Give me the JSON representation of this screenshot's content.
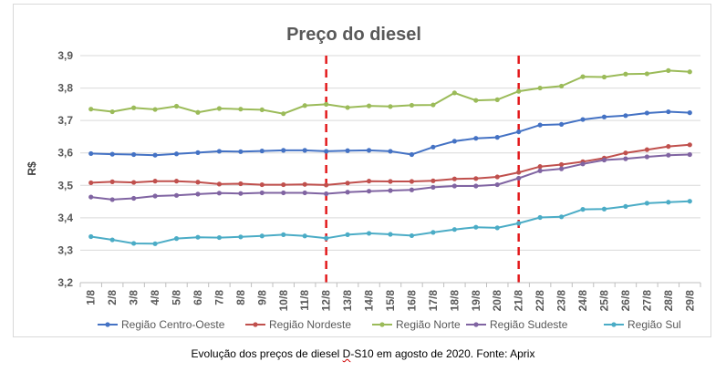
{
  "chart_data": {
    "type": "line",
    "title": "Preço do diesel",
    "ylabel": "R$",
    "xlabel": "",
    "ylim": [
      3.2,
      3.9
    ],
    "yticks": [
      "3,2",
      "3,3",
      "3,4",
      "3,5",
      "3,6",
      "3,7",
      "3,8",
      "3,9"
    ],
    "grid": true,
    "legend": "bottom",
    "categories": [
      "1/8",
      "2/8",
      "3/8",
      "4/8",
      "5/8",
      "6/8",
      "7/8",
      "8/8",
      "9/8",
      "10/8",
      "11/8",
      "12/8",
      "13/8",
      "14/8",
      "15/8",
      "16/8",
      "17/8",
      "18/8",
      "19/8",
      "20/8",
      "21/8",
      "22/8",
      "23/8",
      "24/8",
      "25/8",
      "26/8",
      "27/8",
      "28/8",
      "29/8"
    ],
    "markers": [
      "12/8",
      "21/8"
    ],
    "marker_color": "#e31a1c",
    "series": [
      {
        "name": "Região Centro-Oeste",
        "color": "#4472c4",
        "values": [
          3.598,
          3.596,
          3.595,
          3.593,
          3.597,
          3.601,
          3.605,
          3.604,
          3.606,
          3.608,
          3.608,
          3.605,
          3.607,
          3.608,
          3.605,
          3.595,
          3.618,
          3.636,
          3.645,
          3.648,
          3.665,
          3.686,
          3.688,
          3.703,
          3.711,
          3.715,
          3.723,
          3.727,
          3.724
        ]
      },
      {
        "name": "Região Nordeste",
        "color": "#c0504d",
        "values": [
          3.508,
          3.511,
          3.509,
          3.513,
          3.513,
          3.51,
          3.504,
          3.505,
          3.502,
          3.502,
          3.503,
          3.501,
          3.507,
          3.513,
          3.512,
          3.512,
          3.514,
          3.52,
          3.521,
          3.526,
          3.54,
          3.558,
          3.564,
          3.573,
          3.584,
          3.6,
          3.61,
          3.62,
          3.625
        ]
      },
      {
        "name": "Região Norte",
        "color": "#9bbb59",
        "values": [
          3.735,
          3.727,
          3.739,
          3.734,
          3.744,
          3.725,
          3.737,
          3.735,
          3.733,
          3.721,
          3.746,
          3.75,
          3.74,
          3.745,
          3.743,
          3.747,
          3.748,
          3.785,
          3.762,
          3.764,
          3.79,
          3.8,
          3.806,
          3.835,
          3.834,
          3.843,
          3.844,
          3.854,
          3.85
        ]
      },
      {
        "name": "Região Sudeste",
        "color": "#8064a2",
        "values": [
          3.464,
          3.456,
          3.46,
          3.467,
          3.469,
          3.473,
          3.476,
          3.475,
          3.477,
          3.477,
          3.477,
          3.474,
          3.479,
          3.482,
          3.484,
          3.486,
          3.494,
          3.498,
          3.498,
          3.502,
          3.522,
          3.545,
          3.551,
          3.566,
          3.578,
          3.582,
          3.588,
          3.593,
          3.595
        ]
      },
      {
        "name": "Região Sul",
        "color": "#4bacc6",
        "values": [
          3.342,
          3.332,
          3.321,
          3.32,
          3.336,
          3.34,
          3.339,
          3.341,
          3.344,
          3.348,
          3.344,
          3.337,
          3.348,
          3.352,
          3.349,
          3.345,
          3.355,
          3.364,
          3.371,
          3.369,
          3.383,
          3.401,
          3.403,
          3.426,
          3.427,
          3.435,
          3.445,
          3.448,
          3.451
        ]
      }
    ]
  },
  "caption": {
    "before": "Evolução dos preços de diesel ",
    "flagged": "D",
    "after": "-S10 em agosto de 2020. Fonte: Aprix"
  }
}
